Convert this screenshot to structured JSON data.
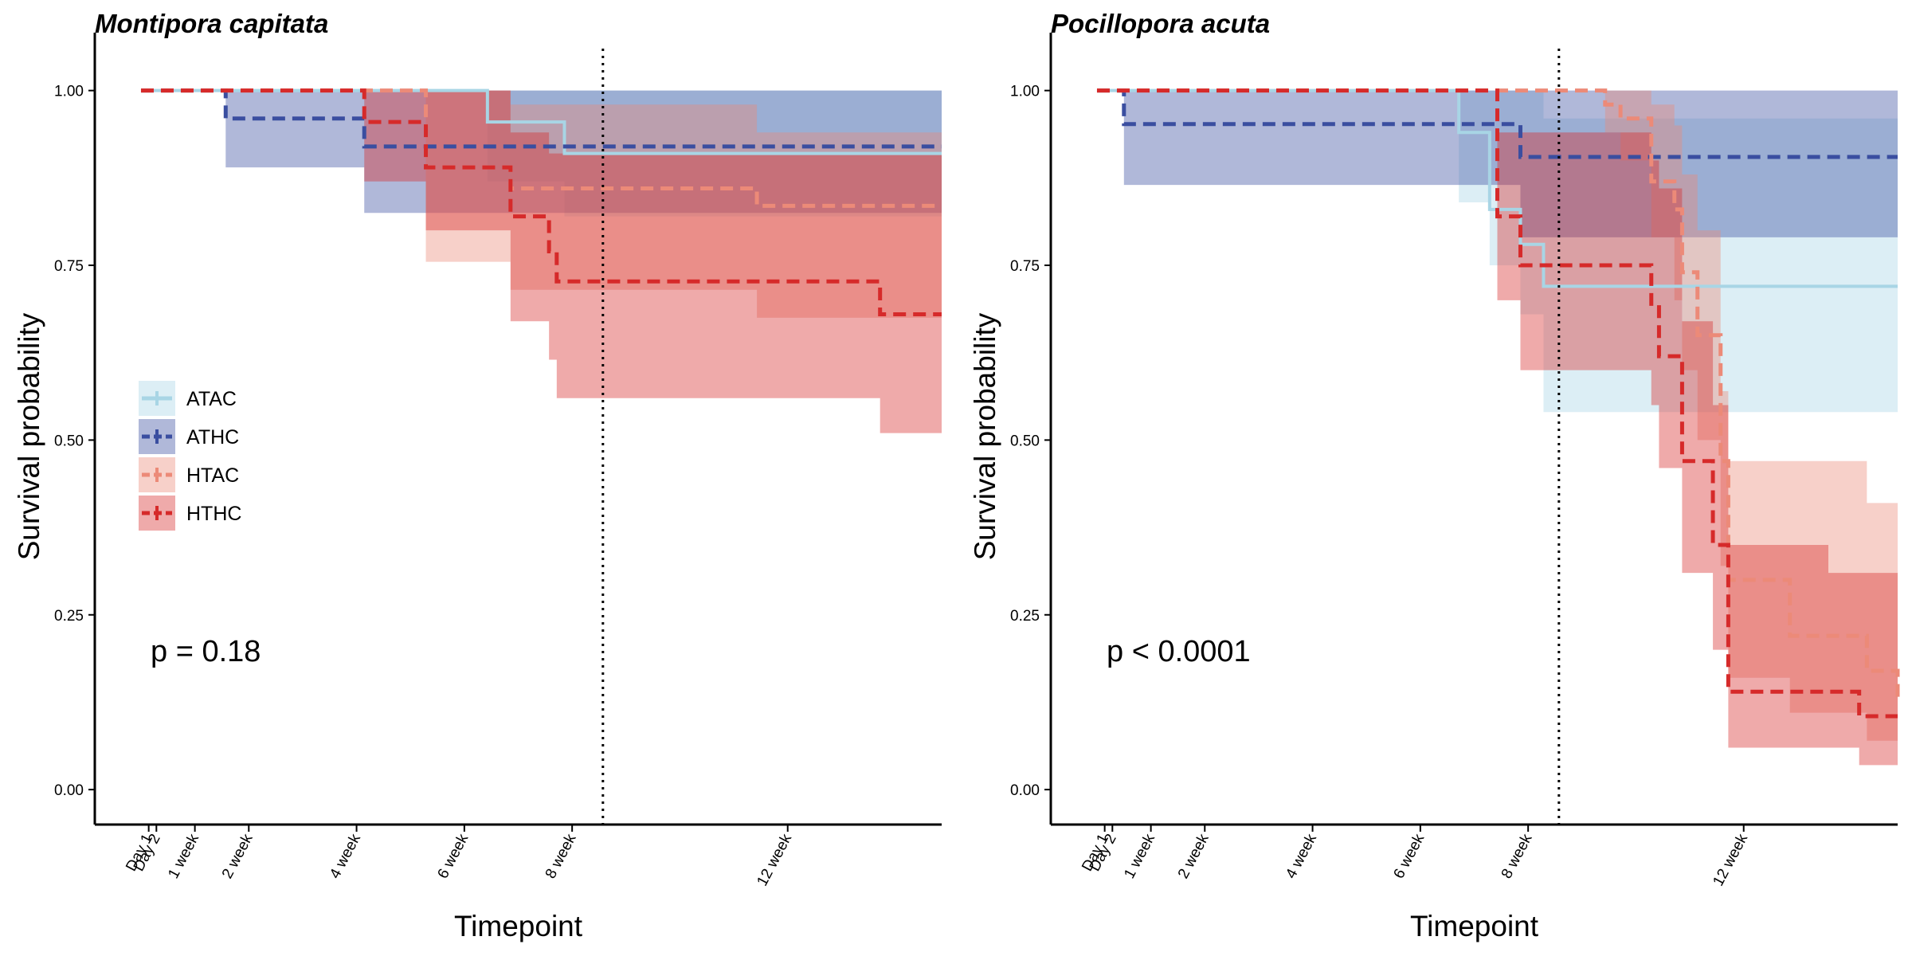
{
  "chart_data": [
    {
      "type": "step",
      "title": "Montipora capitata",
      "x_label": "Timepoint",
      "y_label": "Survival probability",
      "annotation": "p = 0.18",
      "legend": "left",
      "vline": 60,
      "xlim": [
        -6,
        104
      ],
      "ylim": [
        -0.05,
        1.06
      ],
      "xticks": [
        {
          "value": 1,
          "label": "Day 1"
        },
        {
          "value": 2,
          "label": "Day 2"
        },
        {
          "value": 7,
          "label": "1 week"
        },
        {
          "value": 14,
          "label": "2 week"
        },
        {
          "value": 28,
          "label": "4 week"
        },
        {
          "value": 42,
          "label": "6 week"
        },
        {
          "value": 56,
          "label": "8 week"
        },
        {
          "value": 84,
          "label": "12 week"
        }
      ],
      "yticks": [
        {
          "value": 0,
          "label": "0.00"
        },
        {
          "value": 0.25,
          "label": "0.25"
        },
        {
          "value": 0.5,
          "label": "0.50"
        },
        {
          "value": 0.75,
          "label": "0.75"
        },
        {
          "value": 1,
          "label": "1.00"
        }
      ],
      "series": [
        {
          "name": "ATAC",
          "color": "#a8d5e5",
          "linestyle": "solid",
          "x": [
            0,
            45,
            55,
            104
          ],
          "values": [
            1,
            0.955,
            0.91,
            0.91
          ],
          "lower": [
            1,
            0.87,
            0.82,
            0.82
          ],
          "upper": [
            1,
            1,
            1,
            1
          ]
        },
        {
          "name": "ATHC",
          "color": "#3a4ea0",
          "linestyle": "dashed",
          "x": [
            0,
            11,
            29,
            104
          ],
          "values": [
            1,
            0.96,
            0.92,
            0.92
          ],
          "lower": [
            1,
            0.89,
            0.825,
            0.825
          ],
          "upper": [
            1,
            1,
            1,
            1
          ]
        },
        {
          "name": "HTAC",
          "color": "#ec8a78",
          "linestyle": "dashed",
          "x": [
            0,
            37,
            48,
            80,
            104
          ],
          "values": [
            1,
            0.89,
            0.86,
            0.835,
            0.835
          ],
          "lower": [
            1,
            0.755,
            0.715,
            0.675,
            0.675
          ],
          "upper": [
            1,
            1,
            0.98,
            0.94,
            0.94
          ]
        },
        {
          "name": "HTHC",
          "color": "#d62a2a",
          "linestyle": "dashed",
          "x": [
            0,
            29,
            37,
            48,
            53,
            54,
            96,
            104
          ],
          "values": [
            1,
            0.955,
            0.89,
            0.82,
            0.77,
            0.727,
            0.68,
            0.68
          ],
          "lower": [
            1,
            0.87,
            0.8,
            0.67,
            0.615,
            0.56,
            0.51,
            0.51
          ],
          "upper": [
            1,
            1,
            1,
            0.94,
            0.91,
            0.91,
            0.91,
            0.91
          ]
        }
      ]
    },
    {
      "type": "step",
      "title": "Pocillopora acuta",
      "x_label": "Timepoint",
      "y_label": "Survival probability",
      "annotation": "p < 0.0001",
      "vline": 60,
      "xlim": [
        -6,
        104
      ],
      "ylim": [
        -0.05,
        1.06
      ],
      "xticks": [
        {
          "value": 1,
          "label": "Day 1"
        },
        {
          "value": 2,
          "label": "Day 2"
        },
        {
          "value": 7,
          "label": "1 week"
        },
        {
          "value": 14,
          "label": "2 week"
        },
        {
          "value": 28,
          "label": "4 week"
        },
        {
          "value": 42,
          "label": "6 week"
        },
        {
          "value": 56,
          "label": "8 week"
        },
        {
          "value": 84,
          "label": "12 week"
        }
      ],
      "yticks": [
        {
          "value": 0,
          "label": "0.00"
        },
        {
          "value": 0.25,
          "label": "0.25"
        },
        {
          "value": 0.5,
          "label": "0.50"
        },
        {
          "value": 0.75,
          "label": "0.75"
        },
        {
          "value": 1,
          "label": "1.00"
        }
      ],
      "series": [
        {
          "name": "ATAC",
          "color": "#a8d5e5",
          "linestyle": "solid",
          "x": [
            0,
            47,
            51,
            55,
            58,
            104
          ],
          "values": [
            1,
            0.94,
            0.83,
            0.78,
            0.72,
            0.72
          ],
          "lower": [
            1,
            0.84,
            0.75,
            0.68,
            0.54,
            0.54
          ],
          "upper": [
            1,
            1,
            1,
            1,
            0.96,
            0.96
          ]
        },
        {
          "name": "ATHC",
          "color": "#3a4ea0",
          "linestyle": "dashed",
          "x": [
            0,
            3.5,
            55,
            104
          ],
          "values": [
            1,
            0.952,
            0.905,
            0.905
          ],
          "lower": [
            1,
            0.865,
            0.79,
            0.79
          ],
          "upper": [
            1,
            1,
            1,
            1
          ]
        },
        {
          "name": "HTAC",
          "color": "#ec8a78",
          "linestyle": "dashed",
          "x": [
            0,
            66,
            68,
            72,
            75,
            76,
            78,
            81,
            82,
            90,
            100,
            104
          ],
          "values": [
            1,
            0.98,
            0.96,
            0.87,
            0.83,
            0.74,
            0.65,
            0.47,
            0.3,
            0.22,
            0.17,
            0.13
          ],
          "lower": [
            1,
            0.94,
            0.9,
            0.79,
            0.7,
            0.6,
            0.5,
            0.32,
            0.16,
            0.11,
            0.07,
            0.05
          ],
          "upper": [
            1,
            1,
            1,
            0.98,
            0.95,
            0.88,
            0.8,
            0.57,
            0.47,
            0.47,
            0.41,
            0.37
          ]
        },
        {
          "name": "HTHC",
          "color": "#d62a2a",
          "linestyle": "dashed",
          "x": [
            0,
            52,
            55,
            72,
            73,
            76,
            80,
            82,
            95,
            99,
            104
          ],
          "values": [
            1,
            0.82,
            0.75,
            0.69,
            0.62,
            0.47,
            0.35,
            0.14,
            0.14,
            0.105,
            0.105
          ],
          "lower": [
            1,
            0.7,
            0.6,
            0.55,
            0.46,
            0.31,
            0.2,
            0.06,
            0.06,
            0.035,
            0.035
          ],
          "upper": [
            1,
            0.94,
            0.94,
            0.9,
            0.86,
            0.67,
            0.55,
            0.35,
            0.31,
            0.31,
            0.31
          ]
        }
      ]
    }
  ]
}
